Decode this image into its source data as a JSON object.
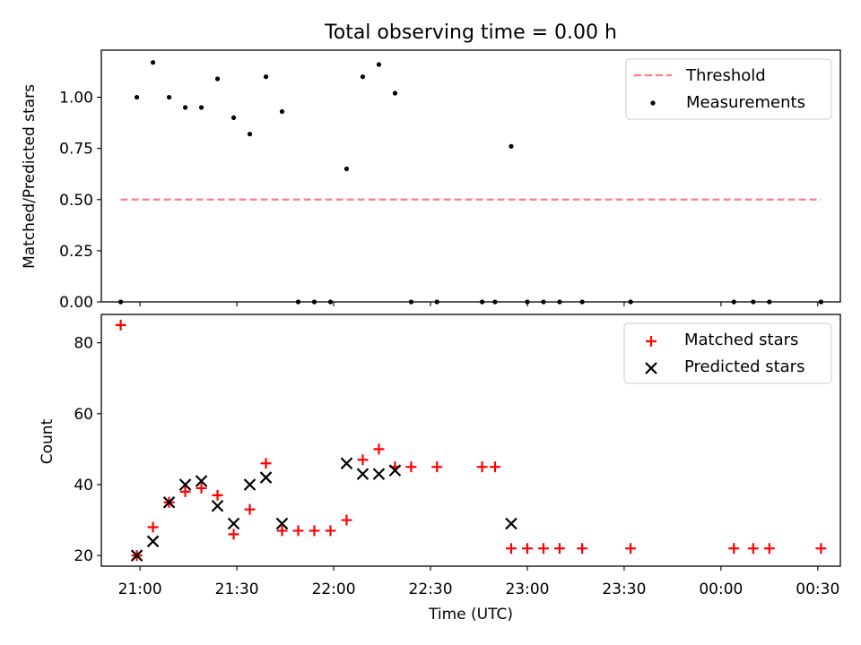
{
  "chart_data": [
    {
      "type": "scatter",
      "title": "Total observing time = 0.00 h",
      "ylabel": "Matched/Predicted stars",
      "xlabel": "",
      "xlim": [
        "20:48",
        "00:37"
      ],
      "ylim": [
        0.0,
        1.23
      ],
      "x_ticks": [
        "21:00",
        "21:30",
        "22:00",
        "22:30",
        "23:00",
        "23:30",
        "00:00",
        "00:30"
      ],
      "y_ticks": [
        "0.00",
        "0.25",
        "0.50",
        "0.75",
        "1.00"
      ],
      "y_tick_values": [
        0.0,
        0.25,
        0.5,
        0.75,
        1.0
      ],
      "grid": false,
      "legend_position": "top-right",
      "series": [
        {
          "name": "Threshold",
          "style": "dashed-line",
          "color": "#ff7f7f",
          "points": [
            [
              "20:54",
              0.5
            ],
            [
              "00:31",
              0.5
            ]
          ]
        },
        {
          "name": "Measurements",
          "style": "dot",
          "color": "#000000",
          "points": [
            [
              "20:54",
              0.0
            ],
            [
              "20:59",
              1.0
            ],
            [
              "21:04",
              1.17
            ],
            [
              "21:09",
              1.0
            ],
            [
              "21:14",
              0.95
            ],
            [
              "21:19",
              0.95
            ],
            [
              "21:24",
              1.09
            ],
            [
              "21:29",
              0.9
            ],
            [
              "21:34",
              0.82
            ],
            [
              "21:39",
              1.1
            ],
            [
              "21:44",
              0.93
            ],
            [
              "21:49",
              0.0
            ],
            [
              "21:54",
              0.0
            ],
            [
              "21:59",
              0.0
            ],
            [
              "22:04",
              0.65
            ],
            [
              "22:09",
              1.1
            ],
            [
              "22:14",
              1.16
            ],
            [
              "22:19",
              1.02
            ],
            [
              "22:24",
              0.0
            ],
            [
              "22:32",
              0.0
            ],
            [
              "22:46",
              0.0
            ],
            [
              "22:50",
              0.0
            ],
            [
              "22:55",
              0.76
            ],
            [
              "23:00",
              0.0
            ],
            [
              "23:05",
              0.0
            ],
            [
              "23:10",
              0.0
            ],
            [
              "23:17",
              0.0
            ],
            [
              "23:32",
              0.0
            ],
            [
              "00:04",
              0.0
            ],
            [
              "00:10",
              0.0
            ],
            [
              "00:15",
              0.0
            ],
            [
              "00:31",
              0.0
            ]
          ]
        }
      ]
    },
    {
      "type": "scatter",
      "title": "",
      "ylabel": "Count",
      "xlabel": "Time (UTC)",
      "xlim": [
        "20:48",
        "00:37"
      ],
      "ylim": [
        17,
        88
      ],
      "x_ticks": [
        "21:00",
        "21:30",
        "22:00",
        "22:30",
        "23:00",
        "23:30",
        "00:00",
        "00:30"
      ],
      "y_ticks": [
        "20",
        "40",
        "60",
        "80"
      ],
      "y_tick_values": [
        20,
        40,
        60,
        80
      ],
      "grid": false,
      "legend_position": "top-right",
      "series": [
        {
          "name": "Matched stars",
          "style": "plus",
          "color": "#ff0000",
          "points": [
            [
              "20:54",
              85
            ],
            [
              "20:59",
              20
            ],
            [
              "21:04",
              28
            ],
            [
              "21:09",
              35
            ],
            [
              "21:14",
              38
            ],
            [
              "21:19",
              39
            ],
            [
              "21:24",
              37
            ],
            [
              "21:29",
              26
            ],
            [
              "21:34",
              33
            ],
            [
              "21:39",
              46
            ],
            [
              "21:44",
              27
            ],
            [
              "21:49",
              27
            ],
            [
              "21:54",
              27
            ],
            [
              "21:59",
              27
            ],
            [
              "22:04",
              30
            ],
            [
              "22:09",
              47
            ],
            [
              "22:14",
              50
            ],
            [
              "22:19",
              45
            ],
            [
              "22:24",
              45
            ],
            [
              "22:32",
              45
            ],
            [
              "22:46",
              45
            ],
            [
              "22:50",
              45
            ],
            [
              "22:55",
              22
            ],
            [
              "23:00",
              22
            ],
            [
              "23:05",
              22
            ],
            [
              "23:10",
              22
            ],
            [
              "23:17",
              22
            ],
            [
              "23:32",
              22
            ],
            [
              "00:04",
              22
            ],
            [
              "00:10",
              22
            ],
            [
              "00:15",
              22
            ],
            [
              "00:31",
              22
            ]
          ]
        },
        {
          "name": "Predicted stars",
          "style": "x",
          "color": "#000000",
          "points": [
            [
              "20:59",
              20
            ],
            [
              "21:04",
              24
            ],
            [
              "21:09",
              35
            ],
            [
              "21:14",
              40
            ],
            [
              "21:19",
              41
            ],
            [
              "21:24",
              34
            ],
            [
              "21:29",
              29
            ],
            [
              "21:34",
              40
            ],
            [
              "21:39",
              42
            ],
            [
              "21:44",
              29
            ],
            [
              "22:04",
              46
            ],
            [
              "22:09",
              43
            ],
            [
              "22:14",
              43
            ],
            [
              "22:19",
              44
            ],
            [
              "22:55",
              29
            ]
          ]
        }
      ]
    }
  ]
}
